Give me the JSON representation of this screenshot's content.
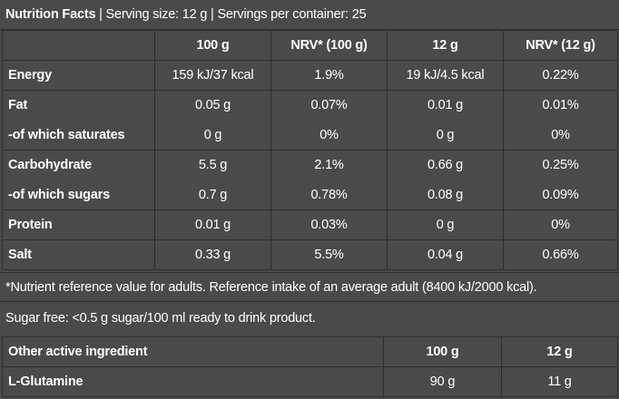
{
  "header": {
    "title": "Nutrition Facts",
    "sep1": " | ",
    "serving_size": "Serving size: 12 g",
    "sep2": " | ",
    "servings": "Servings per container: 25"
  },
  "nutrition_table": {
    "columns": [
      "",
      "100 g",
      "NRV* (100 g)",
      "12 g",
      "NRV* (12 g)"
    ],
    "rows": [
      {
        "name": "Energy",
        "values": [
          "159 kJ/37 kcal",
          "1.9%",
          "19 kJ/4.5 kcal",
          "0.22%"
        ]
      },
      {
        "name": "Fat",
        "values": [
          "0.05 g",
          "0.07%",
          "0.01 g",
          "0.01%"
        ]
      },
      {
        "name": "-of which saturates",
        "values": [
          "0 g",
          "0%",
          "0 g",
          "0%"
        ]
      },
      {
        "name": "Carbohydrate",
        "values": [
          "5.5 g",
          "2.1%",
          "0.66 g",
          "0.25%"
        ]
      },
      {
        "name": "-of which sugars",
        "values": [
          "0.7 g",
          "0.78%",
          "0.08 g",
          "0.09%"
        ]
      },
      {
        "name": "Protein",
        "values": [
          "0.01 g",
          "0.03%",
          "0 g",
          "0%"
        ]
      },
      {
        "name": "Salt",
        "values": [
          "0.33 g",
          "5.5%",
          "0.04 g",
          "0.66%"
        ]
      }
    ]
  },
  "footnote": "*Nutrient reference value for adults. Reference intake of an average adult (8400 kJ/2000 kcal).",
  "sugar_note": "Sugar free: <0.5 g sugar/100 ml ready to drink product.",
  "ingredients_table": {
    "columns": [
      "Other active ingredient",
      "100 g",
      "12 g"
    ],
    "rows": [
      {
        "name": "L-Glutamine",
        "values": [
          "90 g",
          "11 g"
        ]
      }
    ]
  },
  "colors": {
    "background": "#4a4a4a",
    "border": "#2e2e2e",
    "text": "#ffffff"
  }
}
